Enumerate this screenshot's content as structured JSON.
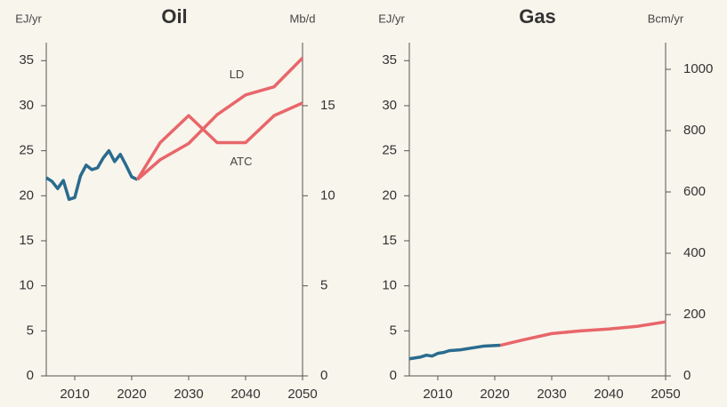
{
  "chart_data": [
    {
      "type": "line",
      "title": "Oil",
      "y_label": "EJ/yr",
      "y2_label": "Mb/d",
      "xlim": [
        2005,
        2050
      ],
      "xticks": [
        2010,
        2020,
        2030,
        2040,
        2050
      ],
      "ylim": [
        0,
        37
      ],
      "yticks": [
        0,
        5,
        10,
        15,
        20,
        25,
        30,
        35
      ],
      "y2lim": [
        0,
        18.5
      ],
      "y2ticks": [
        0,
        5,
        10,
        15
      ],
      "series": [
        {
          "color": "#2a6b8f",
          "x": [
            2005,
            2006,
            2007,
            2008,
            2009,
            2010,
            2011,
            2012,
            2013,
            2014,
            2015,
            2016,
            2017,
            2018,
            2019,
            2020,
            2021
          ],
          "values": [
            22,
            21.6,
            20.8,
            21.7,
            19.6,
            19.8,
            22.2,
            23.4,
            22.9,
            23.1,
            24.2,
            25,
            23.8,
            24.6,
            23.4,
            22.1,
            21.8
          ]
        },
        {
          "name": "LD",
          "color": "#e8666a",
          "x": [
            2021,
            2025,
            2030,
            2035,
            2040,
            2045,
            2050
          ],
          "values": [
            21.8,
            24,
            25.8,
            29,
            31.2,
            32.1,
            35.3
          ]
        },
        {
          "name": "ATC",
          "color": "#e8666a",
          "x": [
            2021,
            2025,
            2030,
            2035,
            2040,
            2045,
            2050
          ],
          "values": [
            21.8,
            25.9,
            28.9,
            25.9,
            25.9,
            28.9,
            30.3
          ]
        }
      ]
    },
    {
      "type": "line",
      "title": "Gas",
      "y_label": "EJ/yr",
      "y2_label": "Bcm/yr",
      "xlim": [
        2005,
        2050
      ],
      "xticks": [
        2010,
        2020,
        2030,
        2040,
        2050
      ],
      "ylim": [
        0,
        37
      ],
      "yticks": [
        0,
        5,
        10,
        15,
        20,
        25,
        30,
        35
      ],
      "y2lim": [
        0,
        1087
      ],
      "y2ticks": [
        0,
        200,
        400,
        600,
        800,
        1000
      ],
      "series": [
        {
          "color": "#2a6b8f",
          "x": [
            2005,
            2007,
            2008,
            2009,
            2010,
            2011,
            2012,
            2014,
            2016,
            2018,
            2021
          ],
          "values": [
            1.9,
            2.1,
            2.3,
            2.2,
            2.5,
            2.6,
            2.8,
            2.9,
            3.1,
            3.3,
            3.4
          ]
        },
        {
          "color": "#e8666a",
          "x": [
            2021,
            2025,
            2030,
            2035,
            2040,
            2045,
            2050
          ],
          "values": [
            3.4,
            4.0,
            4.7,
            5.0,
            5.2,
            5.5,
            6.0
          ]
        }
      ]
    }
  ]
}
